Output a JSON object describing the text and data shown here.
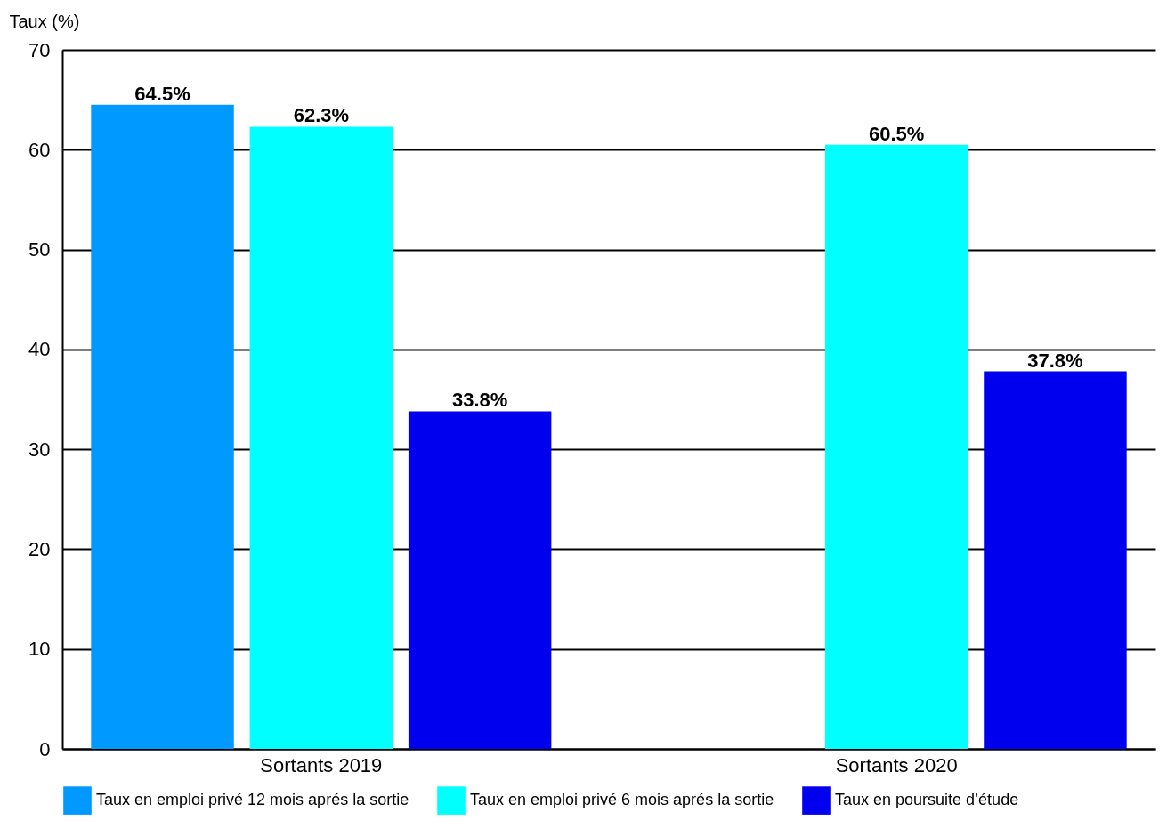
{
  "chart_data": {
    "type": "bar",
    "ylabel": "Taux (%)",
    "categories": [
      "Sortants 2019",
      "Sortants 2020"
    ],
    "series": [
      {
        "name": "Taux en emploi privé 12 mois aprés la sortie",
        "color": "#0099ff",
        "values": [
          64.5,
          null
        ],
        "value_labels": [
          "64.5%",
          null
        ]
      },
      {
        "name": "Taux en emploi privé 6 mois aprés la sortie",
        "color": "#00ffff",
        "values": [
          62.3,
          60.5
        ],
        "value_labels": [
          "62.3%",
          "60.5%"
        ]
      },
      {
        "name": "Taux en poursuite d’étude",
        "color": "#0000ee",
        "values": [
          33.8,
          37.8
        ],
        "value_labels": [
          "33.8%",
          "37.8%"
        ]
      }
    ],
    "ylim": [
      0,
      70
    ],
    "yticks": [
      0,
      10,
      20,
      30,
      40,
      50,
      60,
      70
    ],
    "grid": "y",
    "legend": "bottom"
  }
}
